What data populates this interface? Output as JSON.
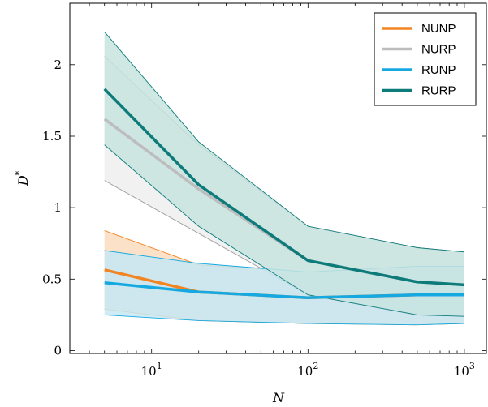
{
  "chart_data": {
    "type": "line",
    "xlabel": "N",
    "ylabel": "D",
    "ylabel_superscript": "*",
    "x_scale": "log",
    "xlim": [
      3,
      1400
    ],
    "ylim": [
      -0.02,
      2.43
    ],
    "x_ticks": [
      {
        "value": 10,
        "base": "10",
        "exp": "1"
      },
      {
        "value": 100,
        "base": "10",
        "exp": "2"
      },
      {
        "value": 1000,
        "base": "10",
        "exp": "3"
      }
    ],
    "y_ticks": [
      {
        "value": 0,
        "label": "0"
      },
      {
        "value": 0.5,
        "label": "0.5"
      },
      {
        "value": 1,
        "label": "1"
      },
      {
        "value": 1.5,
        "label": "1.5"
      },
      {
        "value": 2,
        "label": "2"
      }
    ],
    "grid": false,
    "legend_position": "top-right",
    "x": [
      5,
      20,
      100,
      500,
      1000
    ],
    "series": [
      {
        "name": "NUNP",
        "color": "#f28522",
        "band_fill": "#fbdcc0",
        "band_stroke": "#f28522",
        "values": [
          0.565,
          0.41,
          0.37,
          0.39,
          0.39
        ],
        "upper": [
          0.84,
          0.6,
          0.55,
          0.59,
          0.59
        ],
        "lower": [
          0.29,
          0.21,
          0.19,
          0.18,
          0.19
        ]
      },
      {
        "name": "NURP",
        "color": "#bdbdbd",
        "band_fill": "#efefef",
        "band_stroke": "#9a9a9a",
        "values": [
          1.62,
          1.13,
          0.63,
          0.48,
          0.46
        ],
        "upper": [
          2.06,
          1.44,
          0.87,
          0.72,
          0.69
        ],
        "lower": [
          1.19,
          0.82,
          0.39,
          0.25,
          0.24
        ]
      },
      {
        "name": "RUNP",
        "color": "#16a9e1",
        "band_fill": "#c5e7f5",
        "band_stroke": "#16a9e1",
        "values": [
          0.475,
          0.41,
          0.37,
          0.39,
          0.39
        ],
        "upper": [
          0.7,
          0.61,
          0.55,
          0.59,
          0.59
        ],
        "lower": [
          0.25,
          0.21,
          0.19,
          0.18,
          0.19
        ]
      },
      {
        "name": "RURP",
        "color": "#0e7b7b",
        "band_fill": "#c7e4df",
        "band_stroke": "#0e7b7b",
        "values": [
          1.83,
          1.16,
          0.63,
          0.48,
          0.46
        ],
        "upper": [
          2.23,
          1.46,
          0.87,
          0.72,
          0.69
        ],
        "lower": [
          1.44,
          0.87,
          0.39,
          0.25,
          0.24
        ]
      }
    ]
  }
}
